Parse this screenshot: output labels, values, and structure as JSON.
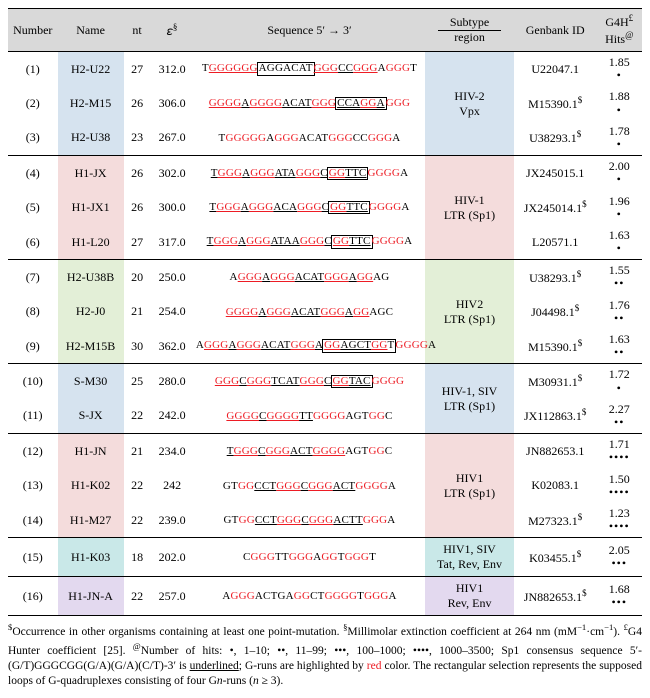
{
  "colors": {
    "header_bg": "#d9d9d9",
    "g_run": "#ed1c24",
    "border": "#000000",
    "group_bg": {
      "blue": "#d6e3ef",
      "pink": "#f4dcdc",
      "green": "#e3efd7",
      "cyan": "#c9e8e8",
      "violet": "#e3d9ef"
    }
  },
  "typography": {
    "base_font": "Times New Roman",
    "base_size_pt": 12,
    "seq_size_pt": 11,
    "footnote_size_pt": 11.5
  },
  "headers": {
    "number": "Number",
    "name": "Name",
    "nt": "nt",
    "eps": "𝜀",
    "eps_sup": "§",
    "sequence": "Sequence 5′ → 3′",
    "subtype_top": "Subtype",
    "subtype_bottom": "region",
    "genbank": "Genbank ID",
    "g4h_top": "G4H",
    "g4h_sup": "£",
    "hits_bottom": "Hits",
    "hits_sup": "@"
  },
  "groups": [
    {
      "bg": "blue",
      "subtype": "HIV-2\nVpx",
      "rows": [
        {
          "num": "(1)",
          "name": "H2-U22",
          "nt": "27",
          "eps": "312.0",
          "seq": [
            [
              "T"
            ],
            [
              "GGGGGG",
              "ru"
            ],
            [
              "AGG",
              "box"
            ],
            [
              "ACAT",
              "box"
            ],
            [
              "GGG",
              "ru"
            ],
            [
              "CC",
              "u"
            ],
            [
              "GGG",
              "ru"
            ],
            [
              "A"
            ],
            [
              "GGG",
              "r"
            ],
            [
              "T"
            ]
          ],
          "gen": "U22047.1",
          "g4h": "1.85",
          "dots": "•"
        },
        {
          "num": "(2)",
          "name": "H2-M15",
          "nt": "26",
          "eps": "306.0",
          "seq": [
            [
              "GGGG",
              "ru"
            ],
            [
              "A",
              "u"
            ],
            [
              "GGGG",
              "ru"
            ],
            [
              "ACAT",
              "u"
            ],
            [
              "GGG",
              "ru"
            ],
            [
              "CCA",
              "box-u"
            ],
            [
              "GG",
              "box-ru"
            ],
            [
              "A",
              "box-u"
            ],
            [
              "GGG",
              "r"
            ]
          ],
          "gen": "M15390.1",
          "gen_sup": "$",
          "g4h": "1.88",
          "dots": "•"
        },
        {
          "num": "(3)",
          "name": "H2-U38",
          "nt": "23",
          "eps": "267.0",
          "seq": [
            [
              "T"
            ],
            [
              "GGGGG",
              "r"
            ],
            [
              "A"
            ],
            [
              "GGG",
              "r"
            ],
            [
              "ACAT"
            ],
            [
              "GGG",
              "r"
            ],
            [
              "CC"
            ],
            [
              "GGG",
              "r"
            ],
            [
              "A"
            ]
          ],
          "gen": "U38293.1",
          "gen_sup": "$",
          "g4h": "1.78",
          "dots": "•"
        }
      ]
    },
    {
      "bg": "pink",
      "subtype": "HIV-1\nLTR (Sp1)",
      "rows": [
        {
          "num": "(4)",
          "name": "H1-JX",
          "nt": "26",
          "eps": "302.0",
          "seq": [
            [
              "T",
              "u"
            ],
            [
              "GGG",
              "ru"
            ],
            [
              "A",
              "u"
            ],
            [
              "GGG",
              "ru"
            ],
            [
              "ATA",
              "u"
            ],
            [
              "GGG",
              "ru"
            ],
            [
              "C",
              "u"
            ],
            [
              "GG",
              "box-ru"
            ],
            [
              "TTC",
              "box-u"
            ],
            [
              "GGGG",
              "r"
            ],
            [
              "A"
            ]
          ],
          "gen": "JX245015.1",
          "g4h": "2.00",
          "dots": "•"
        },
        {
          "num": "(5)",
          "name": "H1-JX1",
          "nt": "26",
          "eps": "300.0",
          "seq": [
            [
              "T",
              "u"
            ],
            [
              "GGG",
              "ru"
            ],
            [
              "A",
              "u"
            ],
            [
              "GGG",
              "ru"
            ],
            [
              "ACA",
              "u"
            ],
            [
              "GGG",
              "ru"
            ],
            [
              "C",
              "u"
            ],
            [
              "GG",
              "box-ru"
            ],
            [
              "TTC",
              "box-u"
            ],
            [
              "GGGG",
              "r"
            ],
            [
              "A"
            ]
          ],
          "gen": "JX245014.1",
          "gen_sup": "$",
          "g4h": "1.96",
          "dots": "•"
        },
        {
          "num": "(6)",
          "name": "H1-L20",
          "nt": "27",
          "eps": "317.0",
          "seq": [
            [
              "T",
              "u"
            ],
            [
              "GGG",
              "ru"
            ],
            [
              "A",
              "u"
            ],
            [
              "GGG",
              "ru"
            ],
            [
              "ATAA",
              "u"
            ],
            [
              "GGG",
              "ru"
            ],
            [
              "C",
              "u"
            ],
            [
              "GG",
              "box-ru"
            ],
            [
              "TTC",
              "box-u"
            ],
            [
              "GGGG",
              "r"
            ],
            [
              "A"
            ]
          ],
          "gen": "L20571.1",
          "g4h": "1.63",
          "dots": "•"
        }
      ]
    },
    {
      "bg": "green",
      "subtype": "HIV2\nLTR (Sp1)",
      "rows": [
        {
          "num": "(7)",
          "name": "H2-U38B",
          "nt": "20",
          "eps": "250.0",
          "seq": [
            [
              "A"
            ],
            [
              "GGG",
              "ru"
            ],
            [
              "A",
              "u"
            ],
            [
              "GGG",
              "ru"
            ],
            [
              "ACAT",
              "u"
            ],
            [
              "GGG",
              "ru"
            ],
            [
              "A",
              "u"
            ],
            [
              "GG",
              "ru"
            ],
            [
              "AG"
            ]
          ],
          "gen": "U38293.1",
          "gen_sup": "$",
          "g4h": "1.55",
          "dots": "••"
        },
        {
          "num": "(8)",
          "name": "H2-J0",
          "nt": "21",
          "eps": "254.0",
          "seq": [
            [
              "GGGG",
              "ru"
            ],
            [
              "A",
              "u"
            ],
            [
              "GGG",
              "ru"
            ],
            [
              "ACAT",
              "u"
            ],
            [
              "GGG",
              "ru"
            ],
            [
              "A",
              "u"
            ],
            [
              "GG",
              "ru"
            ],
            [
              "AGC"
            ]
          ],
          "gen": "J04498.1",
          "gen_sup": "$",
          "g4h": "1.76",
          "dots": "••"
        },
        {
          "num": "(9)",
          "name": "H2-M15B",
          "nt": "30",
          "eps": "362.0",
          "seq": [
            [
              "A"
            ],
            [
              "GGG",
              "ru"
            ],
            [
              "A",
              "u"
            ],
            [
              "GGG",
              "ru"
            ],
            [
              "ACAT",
              "u"
            ],
            [
              "GGG",
              "ru"
            ],
            [
              "A",
              "u"
            ],
            [
              "GG",
              "box-ru"
            ],
            [
              "AGCT",
              "box-u"
            ],
            [
              "GG",
              "box-ru"
            ],
            [
              "T",
              "box"
            ],
            [
              "GGGG",
              "r"
            ],
            [
              "A"
            ]
          ],
          "gen": "M15390.1",
          "gen_sup": "$",
          "g4h": "1.63",
          "dots": "••"
        }
      ]
    },
    {
      "bg": "blue",
      "subtype": "HIV-1, SIV\nLTR (Sp1)",
      "rows": [
        {
          "num": "(10)",
          "name": "S-M30",
          "nt": "25",
          "eps": "280.0",
          "seq": [
            [
              "GGG",
              "ru"
            ],
            [
              "C",
              "u"
            ],
            [
              "GGG",
              "ru"
            ],
            [
              "TCAT",
              "u"
            ],
            [
              "GGG",
              "ru"
            ],
            [
              "C",
              "u"
            ],
            [
              "GG",
              "box-ru"
            ],
            [
              "TAC",
              "box-u"
            ],
            [
              "GGGG",
              "r"
            ]
          ],
          "gen": "M30931.1",
          "gen_sup": "$",
          "g4h": "1.72",
          "dots": "•"
        },
        {
          "num": "(11)",
          "name": "S-JX",
          "nt": "22",
          "eps": "242.0",
          "seq": [
            [
              "GGGG",
              "ru"
            ],
            [
              "C",
              "u"
            ],
            [
              "GGGG",
              "ru"
            ],
            [
              "TT",
              "u"
            ],
            [
              "GGGG",
              "r"
            ],
            [
              "AGT"
            ],
            [
              "GG",
              "r"
            ],
            [
              "C"
            ]
          ],
          "gen": "JX112863.1",
          "gen_sup": "$",
          "g4h": "2.27",
          "dots": "••"
        }
      ]
    },
    {
      "bg": "pink",
      "subtype": "HIV1\nLTR (Sp1)",
      "rows": [
        {
          "num": "(12)",
          "name": "H1-JN",
          "nt": "21",
          "eps": "234.0",
          "seq": [
            [
              "T",
              "u"
            ],
            [
              "GGG",
              "ru"
            ],
            [
              "C",
              "u"
            ],
            [
              "GGG",
              "ru"
            ],
            [
              "ACT",
              "u"
            ],
            [
              "GGGG",
              "ru"
            ],
            [
              "AGT"
            ],
            [
              "GG",
              "r"
            ],
            [
              "C"
            ]
          ],
          "gen": "JN882653.1",
          "g4h": "1.71",
          "dots": "••••"
        },
        {
          "num": "(13)",
          "name": "H1-K02",
          "nt": "22",
          "eps": "242",
          "seq": [
            [
              "GT"
            ],
            [
              "GG",
              "r"
            ],
            [
              "CCT",
              "u"
            ],
            [
              "GGG",
              "ru"
            ],
            [
              "C",
              "u"
            ],
            [
              "GGG",
              "ru"
            ],
            [
              "ACT",
              "u"
            ],
            [
              "GGGG",
              "r"
            ],
            [
              "A"
            ]
          ],
          "gen": "K02083.1",
          "g4h": "1.50",
          "dots": "••••"
        },
        {
          "num": "(14)",
          "name": "H1-M27",
          "nt": "22",
          "eps": "239.0",
          "seq": [
            [
              "GT"
            ],
            [
              "GG",
              "r"
            ],
            [
              "CCT",
              "u"
            ],
            [
              "GGG",
              "ru"
            ],
            [
              "C",
              "u"
            ],
            [
              "GGG",
              "ru"
            ],
            [
              "ACTT",
              "u"
            ],
            [
              "GGG",
              "r"
            ],
            [
              "A"
            ]
          ],
          "gen": "M27323.1",
          "gen_sup": "$",
          "g4h": "1.23",
          "dots": "••••"
        }
      ]
    },
    {
      "bg": "cyan",
      "subtype": "HIV1, SIV\nTat, Rev, Env",
      "rows": [
        {
          "num": "(15)",
          "name": "H1-K03",
          "nt": "18",
          "eps": "202.0",
          "seq": [
            [
              "C"
            ],
            [
              "GGG",
              "r"
            ],
            [
              "TT"
            ],
            [
              "GGG",
              "r"
            ],
            [
              "A"
            ],
            [
              "GG",
              "r"
            ],
            [
              "T"
            ],
            [
              "GGG",
              "r"
            ],
            [
              "T"
            ]
          ],
          "gen": "K03455.1",
          "gen_sup": "$",
          "g4h": "2.05",
          "dots": "•••"
        }
      ]
    },
    {
      "bg": "violet",
      "subtype": "HIV1\nRev, Env",
      "rows": [
        {
          "num": "(16)",
          "name": "H1-JN-A",
          "nt": "22",
          "eps": "257.0",
          "seq": [
            [
              "A"
            ],
            [
              "GGG",
              "r"
            ],
            [
              "ACTGA"
            ],
            [
              "GG",
              "r"
            ],
            [
              "CT"
            ],
            [
              "GGGG",
              "r"
            ],
            [
              "T"
            ],
            [
              "GGG",
              "r"
            ],
            [
              "A"
            ]
          ],
          "gen": "JN882653.1",
          "gen_sup": "$",
          "g4h": "1.68",
          "dots": "•••"
        }
      ]
    }
  ],
  "footnote": "$Occurrence in other organisms containing at least one point-mutation. §Millimolar extinction coefficient at 264 nm (mM⁻¹·cm⁻¹). £G4 Hunter coefficient [25]. @Number of hits: •, 1–10; ••, 11–99; •••, 100–1000; ••••, 1000–3500; Sp1 consensus sequence 5′-(G/T)GGGCGG(G/A)(G/A)(C/T)-3′ is underlined; G-runs are highlighted by red color. The rectangular selection represents the supposed loops of G-quadruplexes consisting of four Gn-runs (n ≥ 3)."
}
